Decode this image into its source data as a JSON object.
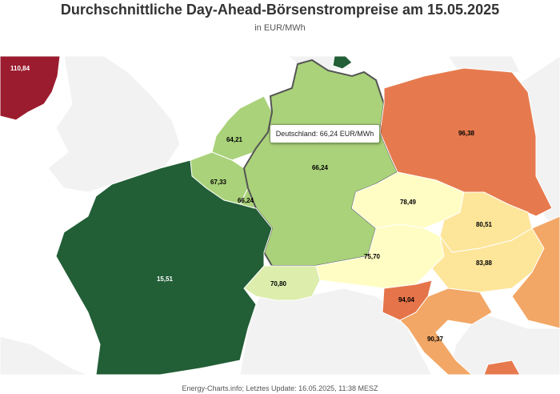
{
  "title": "Durchschnittliche Day-Ahead-Börsenstrompreise am 15.05.2025",
  "subtitle": "in EUR/MWh",
  "tooltip": "Deutschland: 66,24 EUR/MWh",
  "footer": "Energy-Charts.info; Letztes Update: 16.05.2025, 11:38 MESZ",
  "colors": {
    "ocean": "#ffffff",
    "land_no_data": "#f2f2f2",
    "border": "#ffffff",
    "highlight_border": "#555555"
  },
  "regions": [
    {
      "id": "uk",
      "label": "110,84",
      "value": 110.84,
      "color": "#9b1c2e"
    },
    {
      "id": "nl",
      "label": "64,21",
      "value": 64.21,
      "color": "#a9d27a"
    },
    {
      "id": "be",
      "label": "67,33",
      "value": 67.33,
      "color": "#a9d27a"
    },
    {
      "id": "lu",
      "label": "66,24",
      "value": 66.24,
      "color": "#a9d27a"
    },
    {
      "id": "de",
      "label": "66,24",
      "value": 66.24,
      "color": "#aad27a"
    },
    {
      "id": "pl",
      "label": "96,38",
      "value": 96.38,
      "color": "#e67a4e"
    },
    {
      "id": "cz",
      "label": "78,49",
      "value": 78.49,
      "color": "#fffdc4"
    },
    {
      "id": "at",
      "label": "75,70",
      "value": 75.7,
      "color": "#fffdc4"
    },
    {
      "id": "ch",
      "label": "70,80",
      "value": 70.8,
      "color": "#dcedac"
    },
    {
      "id": "fr",
      "label": "15,51",
      "value": 15.51,
      "color": "#225e36"
    },
    {
      "id": "sk",
      "label": "80,51",
      "value": 80.51,
      "color": "#fde59a"
    },
    {
      "id": "hu",
      "label": "83,88",
      "value": 83.88,
      "color": "#fde59a"
    },
    {
      "id": "si",
      "label": "94,04",
      "value": 94.04,
      "color": "#e5744a"
    },
    {
      "id": "hr",
      "label": "90,37",
      "value": 90.37,
      "color": "#f2a766"
    },
    {
      "id": "dk",
      "label": "",
      "value": null,
      "color": "#225e36"
    }
  ]
}
